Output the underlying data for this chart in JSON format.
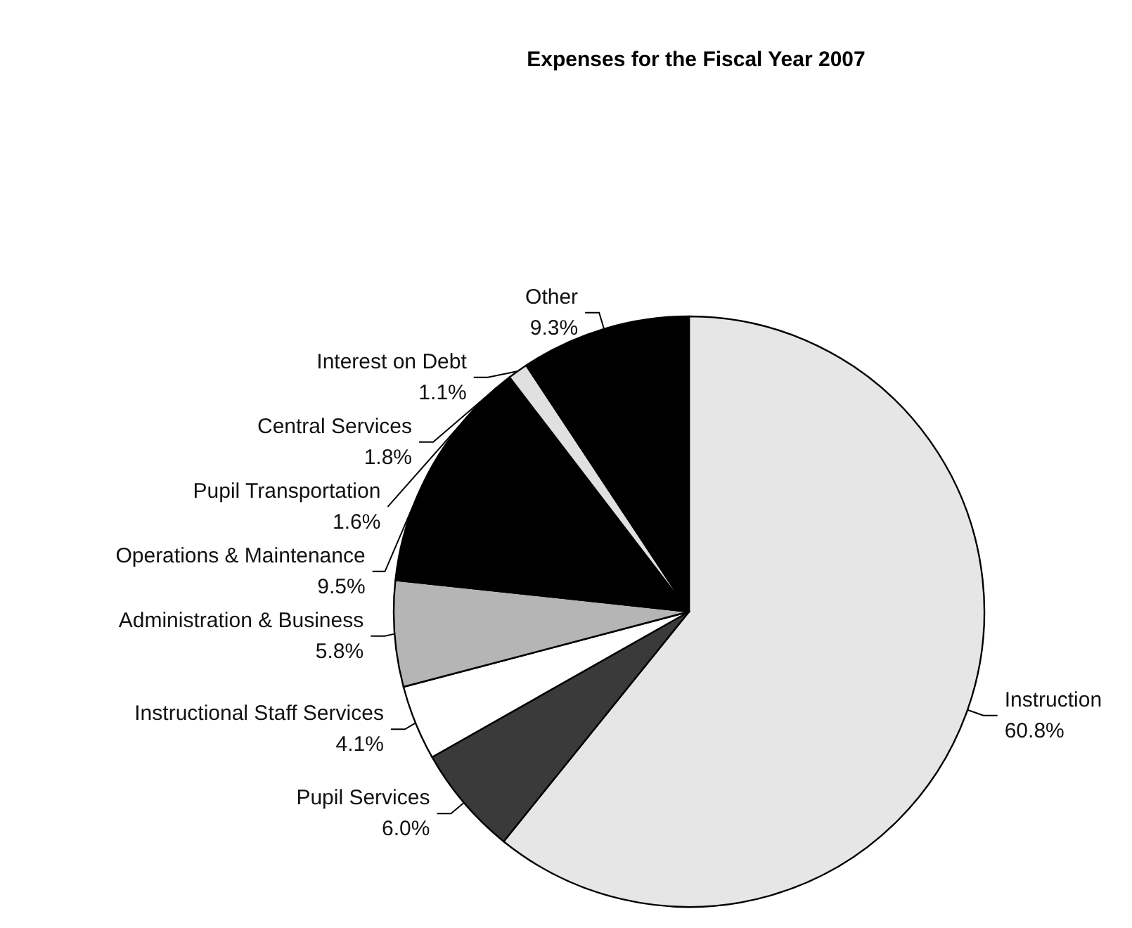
{
  "chart_data": {
    "type": "pie",
    "title": "Expenses for the Fiscal Year 2007",
    "categories": [
      "Instruction",
      "Pupil Services",
      "Instructional Staff Services",
      "Administration & Business",
      "Operations & Maintenance",
      "Pupil Transportation",
      "Central Services",
      "Interest on Debt",
      "Other"
    ],
    "values": [
      60.8,
      6.0,
      4.1,
      5.8,
      9.5,
      1.6,
      1.8,
      1.1,
      9.3
    ],
    "value_labels": [
      "60.8%",
      "6.0%",
      "4.1%",
      "5.8%",
      "9.5%",
      "1.6%",
      "1.8%",
      "1.1%",
      "9.3%"
    ],
    "colors": [
      "#e6e6e6",
      "#3a3a3a",
      "#ffffff",
      "#b5b5b5",
      "#000000",
      "#000000",
      "#000000",
      "#e0e0e0",
      "#000000"
    ],
    "legend": false
  }
}
